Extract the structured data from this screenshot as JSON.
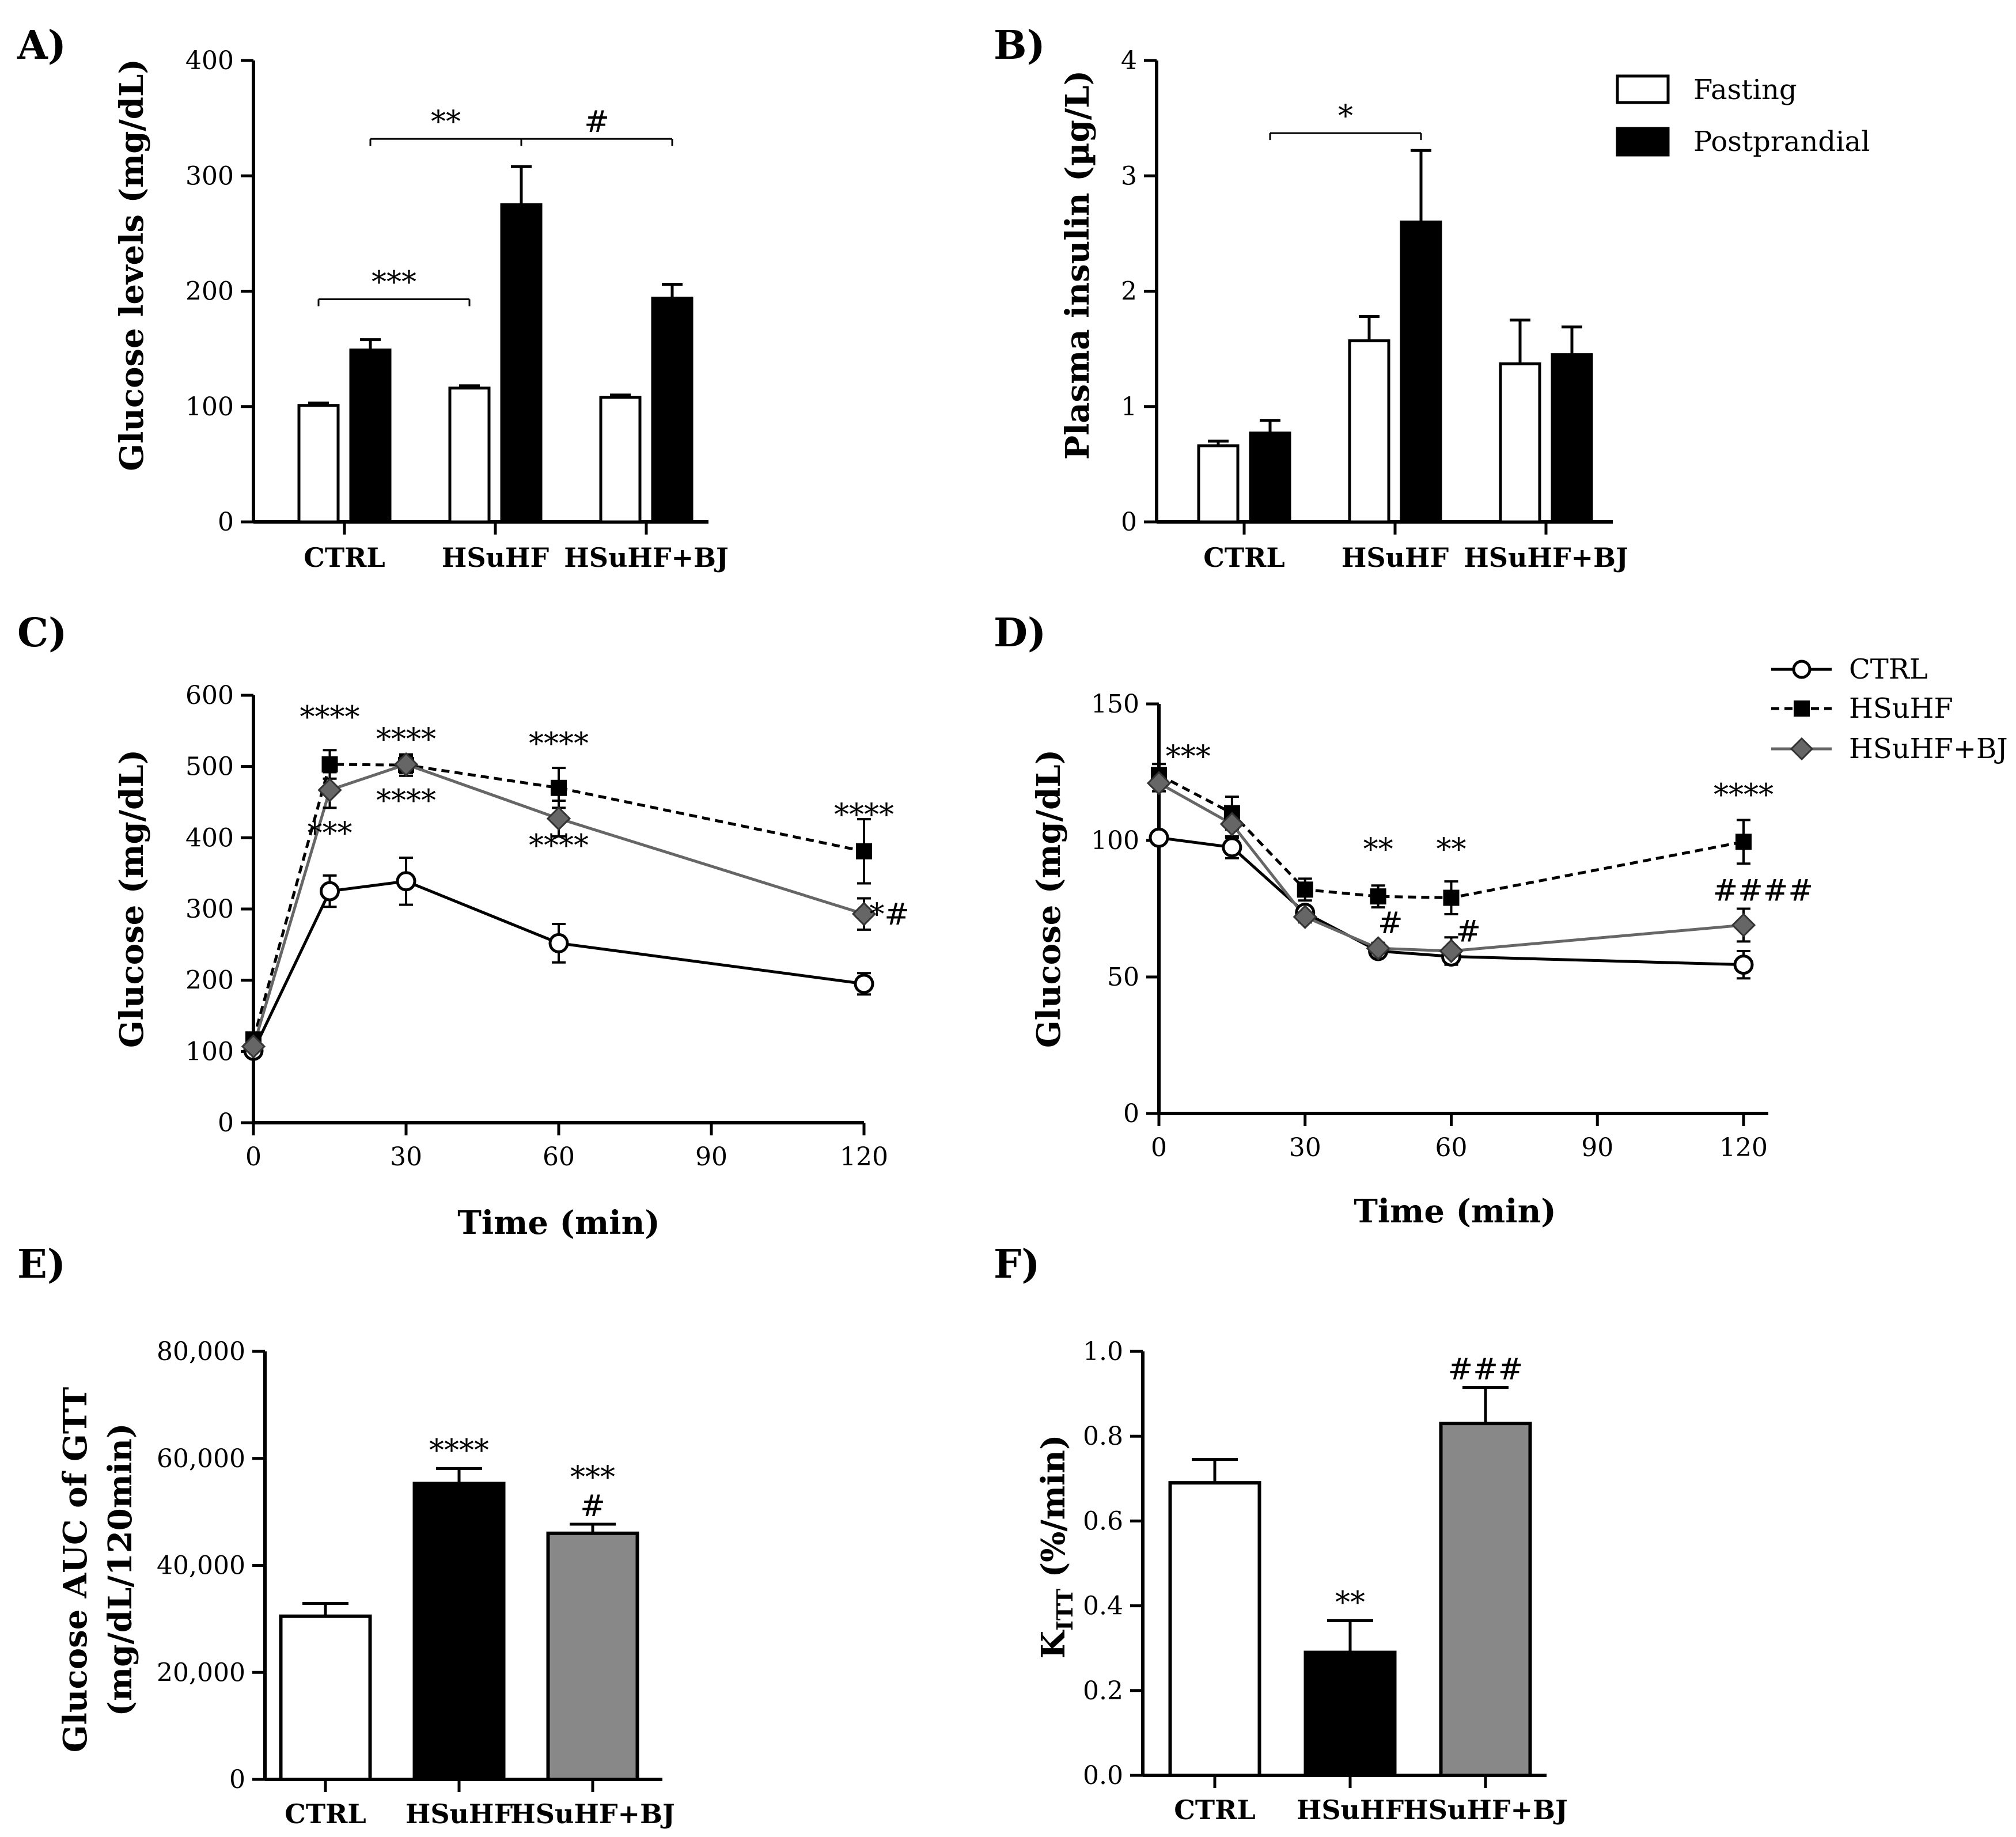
{
  "chart_data": [
    {
      "panel": "A)",
      "type": "bar",
      "ylabel": "Glucose levels (mg/dL)",
      "ylim": [
        0,
        400
      ],
      "yticks": [
        0,
        100,
        200,
        300,
        400
      ],
      "categories": [
        "CTRL",
        "HSuHF",
        "HSuHF+BJ"
      ],
      "series": [
        {
          "name": "Fasting",
          "fill": "#ffffff",
          "values": [
            101,
            116,
            108
          ],
          "errors": [
            2,
            2,
            2
          ]
        },
        {
          "name": "Postprandial",
          "fill": "#000000",
          "values": [
            149,
            275,
            194
          ],
          "errors": [
            9,
            33,
            12
          ]
        }
      ],
      "brackets": [
        {
          "from": "CTRL-Fasting",
          "to": "HSuHF-Fasting",
          "level": 193,
          "label": "***"
        },
        {
          "from": "CTRL-Postprandial",
          "to": "HSuHF-Postprandial",
          "level": 332,
          "label": "**"
        },
        {
          "from": "HSuHF-Postprandial",
          "to": "HSuHF+BJ-Postprandial",
          "level": 332,
          "label": "#"
        }
      ]
    },
    {
      "panel": "B)",
      "type": "bar",
      "ylabel": "Plasma insulin (µg/L)",
      "ylim": [
        0,
        4
      ],
      "yticks": [
        0,
        1,
        2,
        3,
        4
      ],
      "categories": [
        "CTRL",
        "HSuHF",
        "HSuHF+BJ"
      ],
      "series": [
        {
          "name": "Fasting",
          "fill": "#ffffff",
          "values": [
            0.66,
            1.57,
            1.37
          ],
          "errors": [
            0.04,
            0.21,
            0.38
          ]
        },
        {
          "name": "Postprandial",
          "fill": "#000000",
          "values": [
            0.77,
            2.6,
            1.45
          ],
          "errors": [
            0.11,
            0.62,
            0.24
          ]
        }
      ],
      "brackets": [
        {
          "from": "CTRL-Postprandial",
          "to": "HSuHF-Postprandial",
          "level": 3.37,
          "label": "*"
        }
      ],
      "legend": [
        "Fasting",
        "Postprandial"
      ]
    },
    {
      "panel": "C)",
      "type": "line",
      "xlabel": "Time (min)",
      "ylabel": "Glucose (mg/dL)",
      "xlim": [
        0,
        120
      ],
      "ylim": [
        0,
        600
      ],
      "xticks": [
        0,
        30,
        60,
        90,
        120
      ],
      "yticks": [
        0,
        100,
        200,
        300,
        400,
        500,
        600
      ],
      "x": [
        0,
        15,
        30,
        60,
        120
      ],
      "series": [
        {
          "name": "CTRL",
          "marker": "circle",
          "values": [
            101,
            325,
            339,
            252,
            195
          ],
          "errors": [
            5,
            22,
            33,
            27,
            15
          ]
        },
        {
          "name": "HSuHF",
          "marker": "square",
          "values": [
            117,
            503,
            502,
            470,
            381
          ],
          "errors": [
            5,
            20,
            15,
            28,
            45
          ]
        },
        {
          "name": "HSuHF+BJ",
          "marker": "diamond",
          "values": [
            107,
            467,
            503,
            427,
            293
          ],
          "errors": [
            5,
            25,
            12,
            25,
            22
          ]
        }
      ],
      "annotations": [
        {
          "x": 15,
          "y": 555,
          "text": "****"
        },
        {
          "x": 15,
          "y": 392,
          "text": "***"
        },
        {
          "x": 30,
          "y": 524,
          "text": "****"
        },
        {
          "x": 30,
          "y": 438,
          "text": "****"
        },
        {
          "x": 60,
          "y": 518,
          "text": "****"
        },
        {
          "x": 60,
          "y": 375,
          "text": "****"
        },
        {
          "x": 120,
          "y": 418,
          "text": "****"
        },
        {
          "x": 125,
          "y": 278,
          "text": "*#"
        }
      ]
    },
    {
      "panel": "D)",
      "type": "line",
      "xlabel": "Time (min)",
      "ylabel": "Glucose (mg/dL)",
      "xlim": [
        0,
        120
      ],
      "ylim": [
        0,
        150
      ],
      "xticks": [
        0,
        30,
        60,
        90,
        120
      ],
      "yticks": [
        0,
        50,
        100,
        150
      ],
      "x": [
        0,
        15,
        30,
        45,
        60,
        120
      ],
      "series": [
        {
          "name": "CTRL",
          "marker": "circle",
          "values": [
            101,
            97.5,
            73.5,
            59.5,
            57.5,
            54.5
          ],
          "errors": [
            2,
            4,
            2,
            2,
            3,
            5
          ]
        },
        {
          "name": "HSuHF",
          "marker": "square",
          "values": [
            124,
            110,
            82,
            79.5,
            79,
            99.5
          ],
          "errors": [
            4,
            6,
            4,
            4,
            6,
            8
          ]
        },
        {
          "name": "HSuHF+BJ",
          "marker": "diamond",
          "values": [
            121,
            106,
            72,
            60.5,
            59.5,
            69
          ],
          "errors": [
            3,
            5,
            2,
            2,
            5,
            6
          ]
        }
      ],
      "annotations": [
        {
          "x": 6,
          "y": 127,
          "text": "***"
        },
        {
          "x": 45,
          "y": 93,
          "text": "**"
        },
        {
          "x": 47.5,
          "y": 66,
          "text": "#"
        },
        {
          "x": 60,
          "y": 93,
          "text": "**"
        },
        {
          "x": 63.5,
          "y": 63,
          "text": "#"
        },
        {
          "x": 120,
          "y": 113,
          "text": "****"
        },
        {
          "x": 124,
          "y": 78,
          "text": "####"
        }
      ],
      "legend": [
        "CTRL",
        "HSuHF",
        "HSuHF+BJ"
      ]
    },
    {
      "panel": "E)",
      "type": "bar",
      "ylabel": "Glucose AUC of GTT",
      "ylabel2": "(mg/dL/120min)",
      "ylim": [
        0,
        80000
      ],
      "yticks": [
        0,
        20000,
        40000,
        60000,
        80000
      ],
      "ytick_labels": [
        "0",
        "20,000",
        "40,000",
        "60,000",
        "80,000"
      ],
      "categories": [
        "CTRL",
        "HSuHF",
        "HSuHF+BJ"
      ],
      "fills": [
        "#ffffff",
        "#000000",
        "#888888"
      ],
      "values": [
        30500,
        55300,
        46000
      ],
      "errors": [
        2400,
        2800,
        1700
      ],
      "annotations": [
        {
          "category": "HSuHF",
          "lines": [
            "****"
          ]
        },
        {
          "category": "HSuHF+BJ",
          "lines": [
            "***",
            "#"
          ]
        }
      ]
    },
    {
      "panel": "F)",
      "type": "bar",
      "ylabel": "K",
      "ylabel_subscript": "ITT",
      "ylabel_suffix": " (%/min)",
      "ylim": [
        0,
        1
      ],
      "yticks": [
        0,
        0.2,
        0.4,
        0.6,
        0.8,
        1
      ],
      "ytick_labels": [
        "0.0",
        "0.2",
        "0.4",
        "0.6",
        "0.8",
        "1.0"
      ],
      "categories": [
        "CTRL",
        "HSuHF",
        "HSuHF+BJ"
      ],
      "fills": [
        "#ffffff",
        "#000000",
        "#888888"
      ],
      "values": [
        0.69,
        0.29,
        0.83
      ],
      "errors": [
        0.055,
        0.075,
        0.085
      ],
      "annotations": [
        {
          "category": "HSuHF",
          "lines": [
            "**"
          ]
        },
        {
          "category": "HSuHF+BJ",
          "lines": [
            "###"
          ]
        }
      ]
    }
  ]
}
